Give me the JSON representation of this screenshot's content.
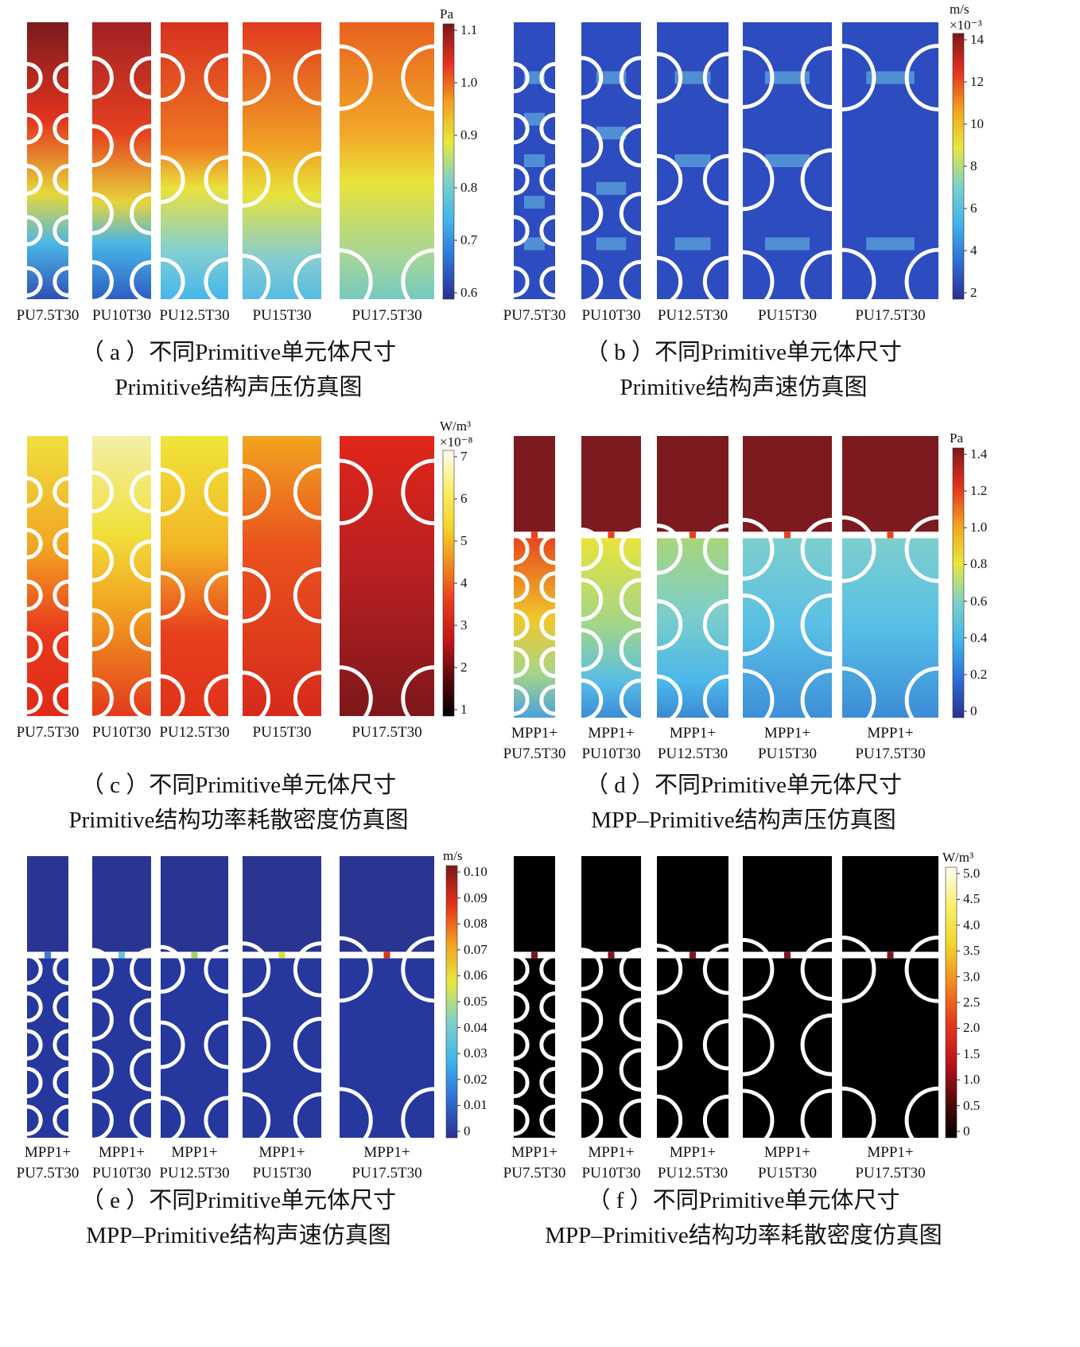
{
  "panels": [
    {
      "id": "a",
      "type": "pressure",
      "caption_line1": "（ a ）不同Primitive单元体尺寸",
      "caption_line2": "Primitive结构声压仿真图",
      "cells": [
        "PU7.5T30",
        "PU10T30",
        "PU12.5T30",
        "PU15T30",
        "PU17.5T30"
      ],
      "colorbar": {
        "unit": "Pa",
        "exponent": "",
        "scheme": "rainbow",
        "ticks": [
          "1.1",
          "1.0",
          "0.9",
          "0.8",
          "0.7",
          "0.6"
        ]
      }
    },
    {
      "id": "b",
      "type": "velocity",
      "caption_line1": "（ b ）不同Primitive单元体尺寸",
      "caption_line2": "Primitive结构声速仿真图",
      "cells": [
        "PU7.5T30",
        "PU10T30",
        "PU12.5T30",
        "PU15T30",
        "PU17.5T30"
      ],
      "colorbar": {
        "unit": "m/s",
        "exponent": "×10⁻³",
        "scheme": "rainbow",
        "ticks": [
          "14",
          "12",
          "10",
          "8",
          "6",
          "4",
          "2"
        ]
      }
    },
    {
      "id": "c",
      "type": "power",
      "caption_line1": "（ c ）不同Primitive单元体尺寸",
      "caption_line2": "Primitive结构功率耗散密度仿真图",
      "cells": [
        "PU7.5T30",
        "PU10T30",
        "PU12.5T30",
        "PU15T30",
        "PU17.5T30"
      ],
      "colorbar": {
        "unit": "W/m³",
        "exponent": "×10⁻⁸",
        "scheme": "heat",
        "ticks": [
          "7",
          "6",
          "5",
          "4",
          "3",
          "2",
          "1"
        ]
      }
    },
    {
      "id": "d",
      "type": "mpp_pressure",
      "caption_line1": "（ d ）不同Primitive单元体尺寸",
      "caption_line2": "MPP–Primitive结构声压仿真图",
      "cells": [
        "MPP1+\nPU7.5T30",
        "MPP1+\nPU10T30",
        "MPP1+\nPU12.5T30",
        "MPP1+\nPU15T30",
        "MPP1+\nPU17.5T30"
      ],
      "colorbar": {
        "unit": "Pa",
        "exponent": "",
        "scheme": "rainbow",
        "ticks": [
          "1.4",
          "1.2",
          "1.0",
          "0.8",
          "0.6",
          "0.4",
          "0.2",
          "0"
        ]
      }
    },
    {
      "id": "e",
      "type": "mpp_velocity",
      "caption_line1": "（ e ）不同Primitive单元体尺寸",
      "caption_line2": "MPP–Primitive结构声速仿真图",
      "cells": [
        "MPP1+\nPU7.5T30",
        "MPP1+\nPU10T30",
        "MPP1+\nPU12.5T30",
        "MPP1+\nPU15T30",
        "MPP1+\nPU17.5T30"
      ],
      "colorbar": {
        "unit": "m/s",
        "exponent": "",
        "scheme": "rainbow",
        "ticks": [
          "0.10",
          "0.09",
          "0.08",
          "0.07",
          "0.06",
          "0.05",
          "0.04",
          "0.03",
          "0.02",
          "0.01",
          "0"
        ]
      }
    },
    {
      "id": "f",
      "type": "mpp_power",
      "caption_line1": "（ f ）不同Primitive单元体尺寸",
      "caption_line2": "MPP–Primitive结构功率耗散密度仿真图",
      "cells": [
        "MPP1+\nPU7.5T30",
        "MPP1+\nPU10T30",
        "MPP1+\nPU12.5T30",
        "MPP1+\nPU15T30",
        "MPP1+\nPU17.5T30"
      ],
      "colorbar": {
        "unit": "W/m³",
        "exponent": "",
        "scheme": "heat",
        "ticks": [
          "5.0",
          "4.5",
          "4.0",
          "3.5",
          "3.0",
          "2.5",
          "2.0",
          "1.5",
          "1.0",
          "0.5",
          "0"
        ]
      }
    }
  ],
  "colors": {
    "rainbow": [
      "#2a2f90",
      "#2f6fd6",
      "#3fb6ea",
      "#7fd0c8",
      "#e8e83a",
      "#f3a11f",
      "#e5301d",
      "#7d1719"
    ],
    "heat": [
      "#000000",
      "#5a0a0a",
      "#c0161a",
      "#e63c1c",
      "#f08a20",
      "#f4d52a",
      "#f8f06a",
      "#fdfdf2"
    ]
  }
}
